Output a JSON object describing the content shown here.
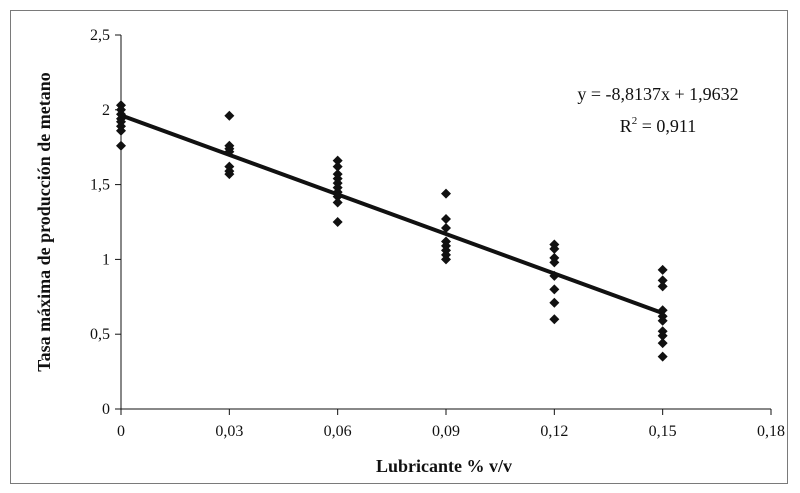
{
  "chart_data": {
    "type": "scatter",
    "title": "",
    "xlabel": "Lubricante % v/v",
    "ylabel": "Tasa máxima de producción de metano",
    "xlim": [
      0,
      0.18
    ],
    "ylim": [
      0,
      2.5
    ],
    "x_ticks": [
      0,
      0.03,
      0.06,
      0.09,
      0.12,
      0.15,
      0.18
    ],
    "x_tick_labels": [
      "0",
      "0,03",
      "0,06",
      "0,09",
      "0,12",
      "0,15",
      "0,18"
    ],
    "y_ticks": [
      0,
      0.5,
      1,
      1.5,
      2,
      2.5
    ],
    "y_tick_labels": [
      "0",
      "0,5",
      "1",
      "1,5",
      "2",
      "2,5"
    ],
    "grid": false,
    "legend": "none",
    "marker_color": "#111111",
    "series": [
      {
        "marker": "diamond",
        "points": [
          [
            0,
            2.03
          ],
          [
            0,
            2.0
          ],
          [
            0,
            1.97
          ],
          [
            0,
            1.94
          ],
          [
            0,
            1.92
          ],
          [
            0,
            1.89
          ],
          [
            0,
            1.86
          ],
          [
            0,
            1.76
          ],
          [
            0.03,
            1.96
          ],
          [
            0.03,
            1.76
          ],
          [
            0.03,
            1.74
          ],
          [
            0.03,
            1.72
          ],
          [
            0.03,
            1.62
          ],
          [
            0.03,
            1.59
          ],
          [
            0.03,
            1.57
          ],
          [
            0.06,
            1.66
          ],
          [
            0.06,
            1.62
          ],
          [
            0.06,
            1.57
          ],
          [
            0.06,
            1.54
          ],
          [
            0.06,
            1.51
          ],
          [
            0.06,
            1.48
          ],
          [
            0.06,
            1.45
          ],
          [
            0.06,
            1.42
          ],
          [
            0.06,
            1.38
          ],
          [
            0.06,
            1.25
          ],
          [
            0.09,
            1.44
          ],
          [
            0.09,
            1.27
          ],
          [
            0.09,
            1.21
          ],
          [
            0.09,
            1.12
          ],
          [
            0.09,
            1.09
          ],
          [
            0.09,
            1.06
          ],
          [
            0.09,
            1.03
          ],
          [
            0.09,
            1.0
          ],
          [
            0.12,
            1.1
          ],
          [
            0.12,
            1.07
          ],
          [
            0.12,
            1.01
          ],
          [
            0.12,
            0.98
          ],
          [
            0.12,
            0.89
          ],
          [
            0.12,
            0.8
          ],
          [
            0.12,
            0.71
          ],
          [
            0.12,
            0.6
          ],
          [
            0.15,
            0.93
          ],
          [
            0.15,
            0.86
          ],
          [
            0.15,
            0.82
          ],
          [
            0.15,
            0.66
          ],
          [
            0.15,
            0.62
          ],
          [
            0.15,
            0.59
          ],
          [
            0.15,
            0.52
          ],
          [
            0.15,
            0.49
          ],
          [
            0.15,
            0.44
          ],
          [
            0.15,
            0.35
          ]
        ]
      }
    ],
    "trendline": {
      "slope": -8.8137,
      "intercept": 1.9632,
      "x_range": [
        0,
        0.15
      ],
      "equation": "y = -8,8137x + 1,9632",
      "r2_prefix": "R",
      "r2_exp": "2",
      "r2_value": " = 0,911"
    }
  }
}
